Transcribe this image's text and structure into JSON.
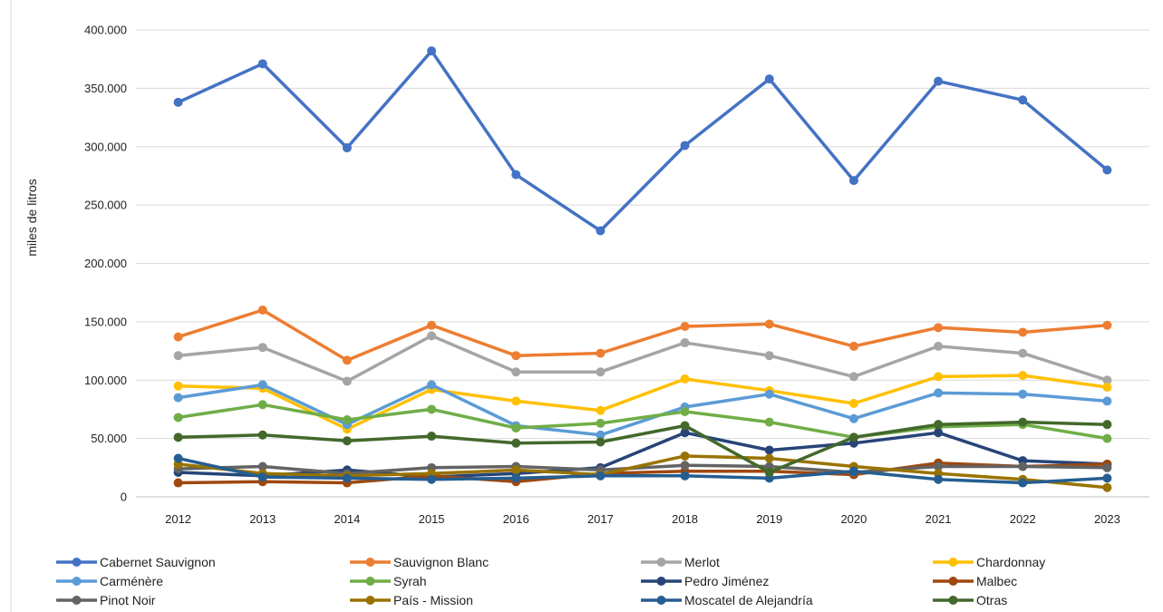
{
  "chart_data": {
    "type": "line",
    "title": "",
    "xlabel": "",
    "ylabel": "miles de litros",
    "categories": [
      "2012",
      "2013",
      "2014",
      "2015",
      "2016",
      "2017",
      "2018",
      "2019",
      "2020",
      "2021",
      "2022",
      "2023"
    ],
    "y_ticks": [
      "0",
      "50.000",
      "100.000",
      "150.000",
      "200.000",
      "250.000",
      "300.000",
      "350.000",
      "400.000"
    ],
    "ylim": [
      0,
      400000
    ],
    "grid": true,
    "legend_position": "bottom",
    "series": [
      {
        "name": "Cabernet Sauvignon",
        "color": "#4472C4",
        "values": [
          338000,
          371000,
          299000,
          382000,
          276000,
          228000,
          301000,
          358000,
          271000,
          356000,
          340000,
          280000
        ]
      },
      {
        "name": "Sauvignon Blanc",
        "color": "#ED7D31",
        "values": [
          137000,
          160000,
          117000,
          147000,
          121000,
          123000,
          146000,
          148000,
          129000,
          145000,
          141000,
          147000
        ]
      },
      {
        "name": "Merlot",
        "color": "#A5A5A5",
        "values": [
          121000,
          128000,
          99000,
          138000,
          107000,
          107000,
          132000,
          121000,
          103000,
          129000,
          123000,
          100000
        ]
      },
      {
        "name": "Chardonnay",
        "color": "#FFC000",
        "values": [
          95000,
          93000,
          58000,
          92000,
          82000,
          74000,
          101000,
          91000,
          80000,
          103000,
          104000,
          94000
        ]
      },
      {
        "name": "Carménère",
        "color": "#5B9BD5",
        "values": [
          85000,
          96000,
          62000,
          96000,
          61000,
          53000,
          77000,
          88000,
          67000,
          89000,
          88000,
          82000
        ]
      },
      {
        "name": "Syrah",
        "color": "#70AD47",
        "values": [
          68000,
          79000,
          66000,
          75000,
          59000,
          63000,
          73000,
          64000,
          51000,
          60000,
          62000,
          50000
        ]
      },
      {
        "name": "Pedro Jiménez",
        "color": "#264478",
        "values": [
          21000,
          18000,
          23000,
          17000,
          20000,
          25000,
          55000,
          40000,
          46000,
          55000,
          31000,
          28000
        ]
      },
      {
        "name": "Malbec",
        "color": "#9E480E",
        "values": [
          12000,
          13000,
          12000,
          18000,
          13000,
          20000,
          22000,
          22000,
          19000,
          29000,
          26000,
          28000
        ]
      },
      {
        "name": "Pinot Noir",
        "color": "#636363",
        "values": [
          24000,
          26000,
          20000,
          25000,
          26000,
          23000,
          27000,
          26000,
          21000,
          26000,
          26000,
          25000
        ]
      },
      {
        "name": "País - Mission",
        "color": "#997300",
        "values": [
          28000,
          20000,
          18000,
          20000,
          23000,
          19000,
          35000,
          33000,
          26000,
          20000,
          15000,
          8000
        ]
      },
      {
        "name": "Moscatel de Alejandría",
        "color": "#255E91",
        "values": [
          33000,
          17000,
          16000,
          15000,
          16000,
          18000,
          18000,
          16000,
          22000,
          15000,
          12000,
          16000
        ]
      },
      {
        "name": "Otras",
        "color": "#43682B",
        "values": [
          51000,
          53000,
          48000,
          52000,
          46000,
          47000,
          61000,
          21000,
          51000,
          62000,
          64000,
          62000
        ]
      }
    ]
  }
}
